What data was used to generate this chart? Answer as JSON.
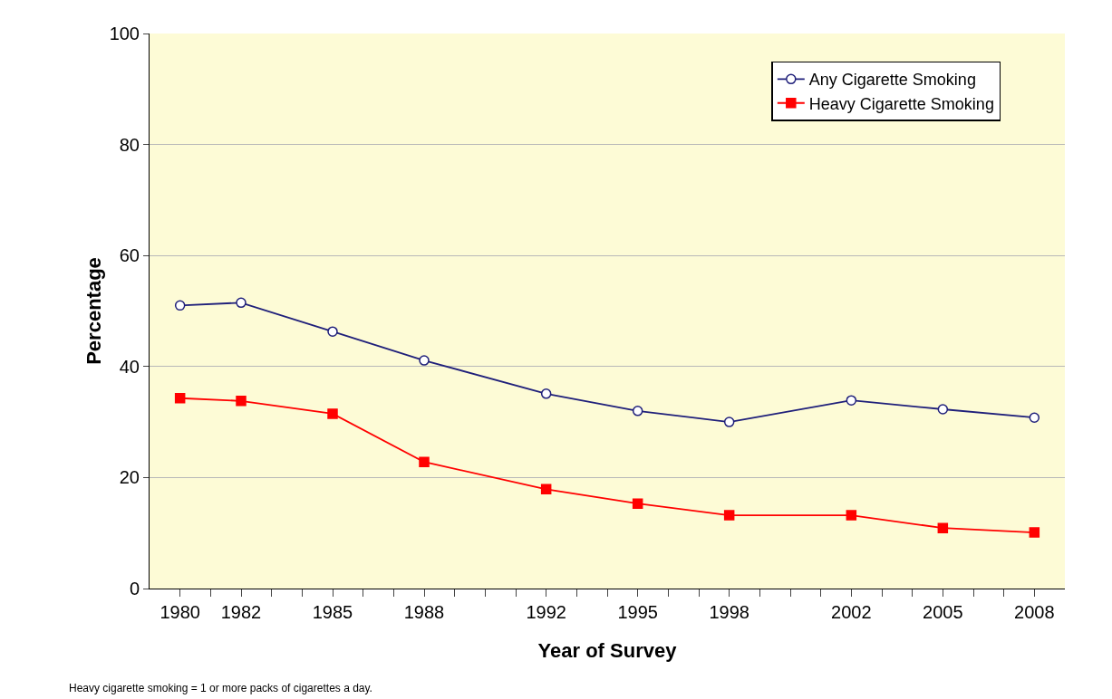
{
  "chart_data": {
    "type": "line",
    "xlabel": "Year of Survey",
    "ylabel": "Percentage",
    "x": [
      1980,
      1982,
      1985,
      1988,
      1992,
      1995,
      1998,
      2002,
      2005,
      2008
    ],
    "series": [
      {
        "name": "Any Cigarette Smoking",
        "color": "#1f1f7a",
        "marker": "circle",
        "values": [
          51,
          51.5,
          46.3,
          41.1,
          35.1,
          32,
          30,
          33.9,
          32.3,
          30.8
        ]
      },
      {
        "name": "Heavy Cigarette Smoking",
        "color": "#ff0000",
        "marker": "square",
        "values": [
          34.3,
          33.8,
          31.5,
          22.8,
          17.9,
          15.3,
          13.2,
          13.2,
          10.9,
          10.1
        ]
      }
    ],
    "xlim": [
      1979,
      2009
    ],
    "xticks": [
      1980,
      {
        "value": 1981,
        "label": null
      },
      1982,
      {
        "value": 1983,
        "label": null
      },
      {
        "value": 1984,
        "label": null
      },
      1985,
      {
        "value": 1986,
        "label": null
      },
      {
        "value": 1987,
        "label": null
      },
      1988,
      {
        "value": 1989,
        "label": null
      },
      {
        "value": 1990,
        "label": null
      },
      {
        "value": 1991,
        "label": null
      },
      1992,
      {
        "value": 1993,
        "label": null
      },
      {
        "value": 1994,
        "label": null
      },
      1995,
      {
        "value": 1996,
        "label": null
      },
      {
        "value": 1997,
        "label": null
      },
      1998,
      {
        "value": 1999,
        "label": null
      },
      {
        "value": 2000,
        "label": null
      },
      {
        "value": 2001,
        "label": null
      },
      2002,
      {
        "value": 2003,
        "label": null
      },
      {
        "value": 2004,
        "label": null
      },
      2005,
      {
        "value": 2006,
        "label": null
      },
      {
        "value": 2007,
        "label": null
      },
      2008
    ],
    "ylim": [
      0,
      100
    ],
    "yticks": [
      0,
      20,
      40,
      60,
      80,
      100
    ],
    "grid": "y",
    "legend": "top right",
    "line_style": "solid",
    "annotations": [
      "Heavy cigarette smoking = 1 or more packs of cigarettes a day."
    ]
  }
}
